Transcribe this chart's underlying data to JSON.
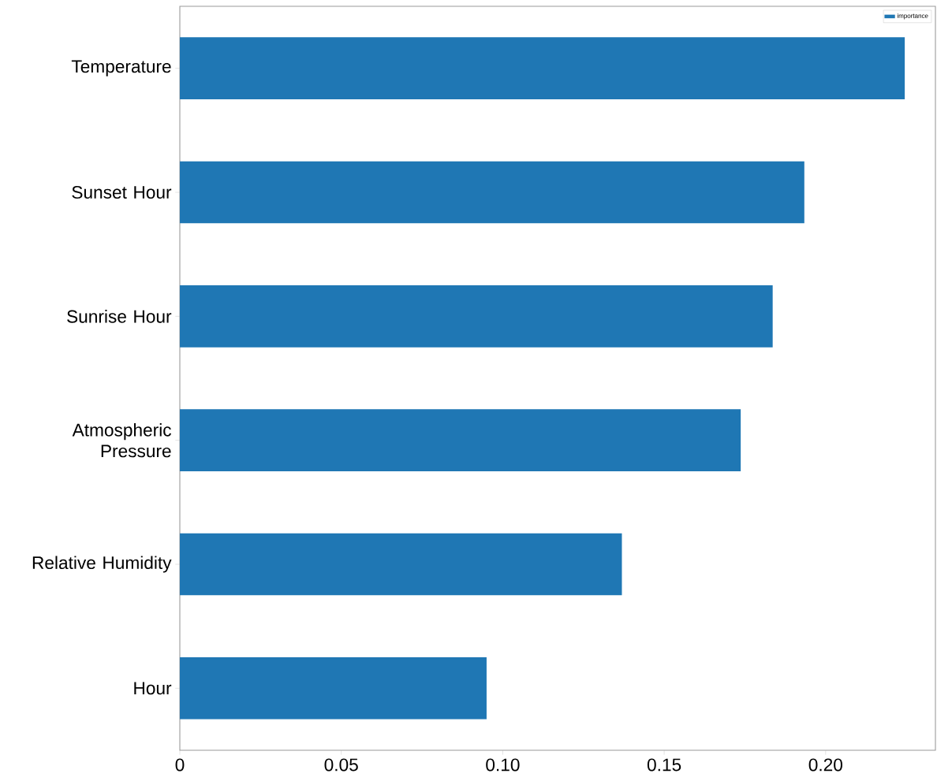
{
  "chart_data": {
    "type": "bar",
    "orientation": "horizontal",
    "categories": [
      "Temperature",
      "Sunset Hour",
      "Sunrise Hour",
      "Atmospheric Pressure",
      "Relative Humidity",
      "Hour"
    ],
    "series": [
      {
        "name": "importance",
        "color": "#1f77b4",
        "values": [
          0.2245,
          0.1934,
          0.1836,
          0.1737,
          0.1369,
          0.095
        ]
      }
    ],
    "xlim": [
      0,
      0.234
    ],
    "xticks": [
      0,
      0.05,
      {
        "value": 0.1,
        "label": "0.10"
      },
      0.15,
      {
        "value": 0.2,
        "label": "0.20"
      }
    ],
    "legend": "top right"
  }
}
